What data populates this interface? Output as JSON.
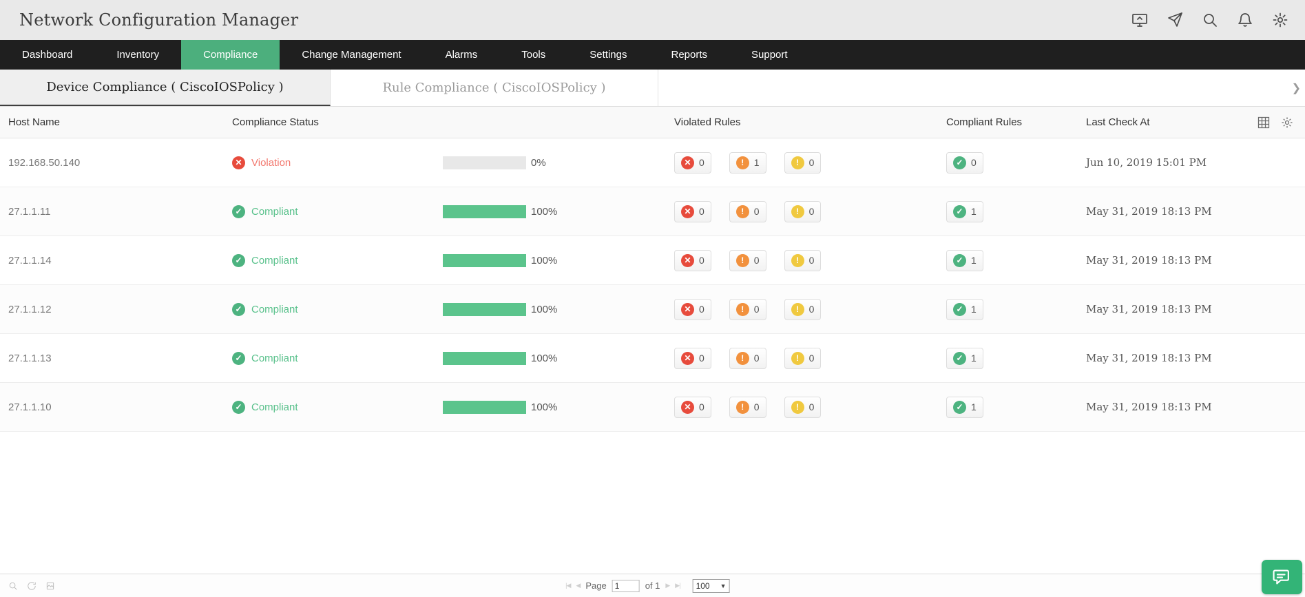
{
  "app": {
    "title": "Network Configuration Manager"
  },
  "header": {
    "icons": [
      "screen-share",
      "send",
      "search",
      "notifications",
      "settings"
    ]
  },
  "nav": {
    "items": [
      {
        "label": "Dashboard",
        "active": false
      },
      {
        "label": "Inventory",
        "active": false
      },
      {
        "label": "Compliance",
        "active": true
      },
      {
        "label": "Change Management",
        "active": false
      },
      {
        "label": "Alarms",
        "active": false
      },
      {
        "label": "Tools",
        "active": false
      },
      {
        "label": "Settings",
        "active": false
      },
      {
        "label": "Reports",
        "active": false
      },
      {
        "label": "Support",
        "active": false
      }
    ]
  },
  "tabs": [
    {
      "label": "Device Compliance ( CiscoIOSPolicy )",
      "active": true
    },
    {
      "label": "Rule Compliance ( CiscoIOSPolicy )",
      "active": false
    }
  ],
  "table": {
    "headers": {
      "host": "Host Name",
      "status": "Compliance Status",
      "violated": "Violated Rules",
      "compliant": "Compliant Rules",
      "last_check": "Last Check At"
    },
    "rows": [
      {
        "host": "192.168.50.140",
        "status": "Violation",
        "status_type": "violation",
        "progress": 0,
        "progress_label": "0%",
        "critical": 0,
        "major": 1,
        "warning": 0,
        "compliant": 0,
        "last_check": "Jun 10, 2019 15:01 PM"
      },
      {
        "host": "27.1.1.11",
        "status": "Compliant",
        "status_type": "compliant",
        "progress": 100,
        "progress_label": "100%",
        "critical": 0,
        "major": 0,
        "warning": 0,
        "compliant": 1,
        "last_check": "May 31, 2019 18:13 PM"
      },
      {
        "host": "27.1.1.14",
        "status": "Compliant",
        "status_type": "compliant",
        "progress": 100,
        "progress_label": "100%",
        "critical": 0,
        "major": 0,
        "warning": 0,
        "compliant": 1,
        "last_check": "May 31, 2019 18:13 PM"
      },
      {
        "host": "27.1.1.12",
        "status": "Compliant",
        "status_type": "compliant",
        "progress": 100,
        "progress_label": "100%",
        "critical": 0,
        "major": 0,
        "warning": 0,
        "compliant": 1,
        "last_check": "May 31, 2019 18:13 PM"
      },
      {
        "host": "27.1.1.13",
        "status": "Compliant",
        "status_type": "compliant",
        "progress": 100,
        "progress_label": "100%",
        "critical": 0,
        "major": 0,
        "warning": 0,
        "compliant": 1,
        "last_check": "May 31, 2019 18:13 PM"
      },
      {
        "host": "27.1.1.10",
        "status": "Compliant",
        "status_type": "compliant",
        "progress": 100,
        "progress_label": "100%",
        "critical": 0,
        "major": 0,
        "warning": 0,
        "compliant": 1,
        "last_check": "May 31, 2019 18:13 PM"
      }
    ]
  },
  "footer": {
    "page_label": "Page",
    "page_value": "1",
    "of_label": "of 1",
    "page_size": "100"
  },
  "colors": {
    "nav_active_green": "#4caf7d",
    "violation_red": "#e74b3c",
    "major_orange": "#f2913d",
    "warning_yellow": "#f0c93f",
    "compliant_green": "#4db380",
    "progress_green": "#5bc48c"
  }
}
